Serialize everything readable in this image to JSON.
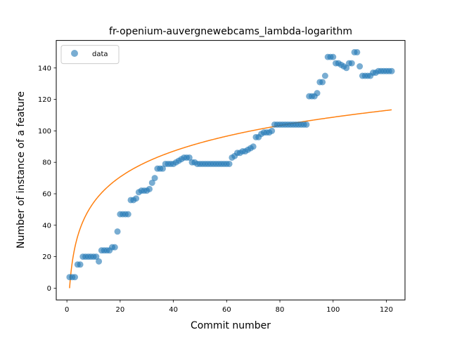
{
  "chart_data": {
    "type": "scatter",
    "title": "fr-openium-auvergnewebcams_lambda-logarithm",
    "xlabel": "Commit number",
    "ylabel": "Number of instance of a feature",
    "xlim": [
      -4,
      127
    ],
    "ylim": [
      -7.5,
      157.5
    ],
    "xticks": [
      0,
      20,
      40,
      60,
      80,
      100,
      120
    ],
    "yticks": [
      0,
      20,
      40,
      60,
      80,
      100,
      120,
      140
    ],
    "grid": false,
    "legend": {
      "position": "top-left",
      "entries": [
        "data"
      ]
    },
    "colors": {
      "points": "#1f77b4",
      "fit": "#ff7f0e"
    },
    "series": [
      {
        "name": "data",
        "kind": "scatter",
        "x": [
          1,
          2,
          3,
          4,
          5,
          6,
          7,
          8,
          9,
          10,
          11,
          12,
          13,
          14,
          15,
          16,
          17,
          18,
          19,
          20,
          21,
          22,
          23,
          24,
          25,
          26,
          27,
          28,
          29,
          30,
          31,
          32,
          33,
          34,
          35,
          36,
          37,
          38,
          39,
          40,
          41,
          42,
          43,
          44,
          45,
          46,
          47,
          48,
          49,
          50,
          51,
          52,
          53,
          54,
          55,
          56,
          57,
          58,
          59,
          60,
          61,
          62,
          63,
          64,
          65,
          66,
          67,
          68,
          69,
          70,
          71,
          72,
          73,
          74,
          75,
          76,
          77,
          78,
          79,
          80,
          81,
          82,
          83,
          84,
          85,
          86,
          87,
          88,
          89,
          90,
          91,
          92,
          93,
          94,
          95,
          96,
          97,
          98,
          99,
          100,
          101,
          102,
          103,
          104,
          105,
          106,
          107,
          108,
          109,
          110,
          111,
          112,
          113,
          114,
          115,
          116,
          117,
          118,
          119,
          120,
          121,
          122
        ],
        "y": [
          7,
          7,
          7,
          15,
          15,
          20,
          20,
          20,
          20,
          20,
          20,
          17,
          24,
          24,
          24,
          24,
          26,
          26,
          36,
          47,
          47,
          47,
          47,
          56,
          56,
          57,
          61,
          62,
          62,
          62,
          63,
          67,
          70,
          76,
          76,
          76,
          79,
          79,
          79,
          79,
          80,
          81,
          82,
          83,
          83,
          83,
          80,
          80,
          79,
          79,
          79,
          79,
          79,
          79,
          79,
          79,
          79,
          79,
          79,
          79,
          79,
          83,
          84,
          86,
          86,
          87,
          87,
          88,
          89,
          90,
          96,
          96,
          98,
          99,
          99,
          99,
          100,
          104,
          104,
          104,
          104,
          104,
          104,
          104,
          104,
          104,
          104,
          104,
          104,
          104,
          122,
          122,
          122,
          124,
          131,
          131,
          135,
          147,
          147,
          147,
          143,
          143,
          142,
          141,
          140,
          143,
          143,
          150,
          150,
          141,
          135,
          135,
          135,
          135,
          137,
          137,
          138,
          138,
          138,
          138,
          138,
          138
        ]
      },
      {
        "name": "",
        "kind": "line",
        "model": "a*ln(x)+b",
        "coefficients": {
          "a": 23.6,
          "b": 0
        },
        "x_range": [
          1,
          122
        ]
      }
    ]
  }
}
